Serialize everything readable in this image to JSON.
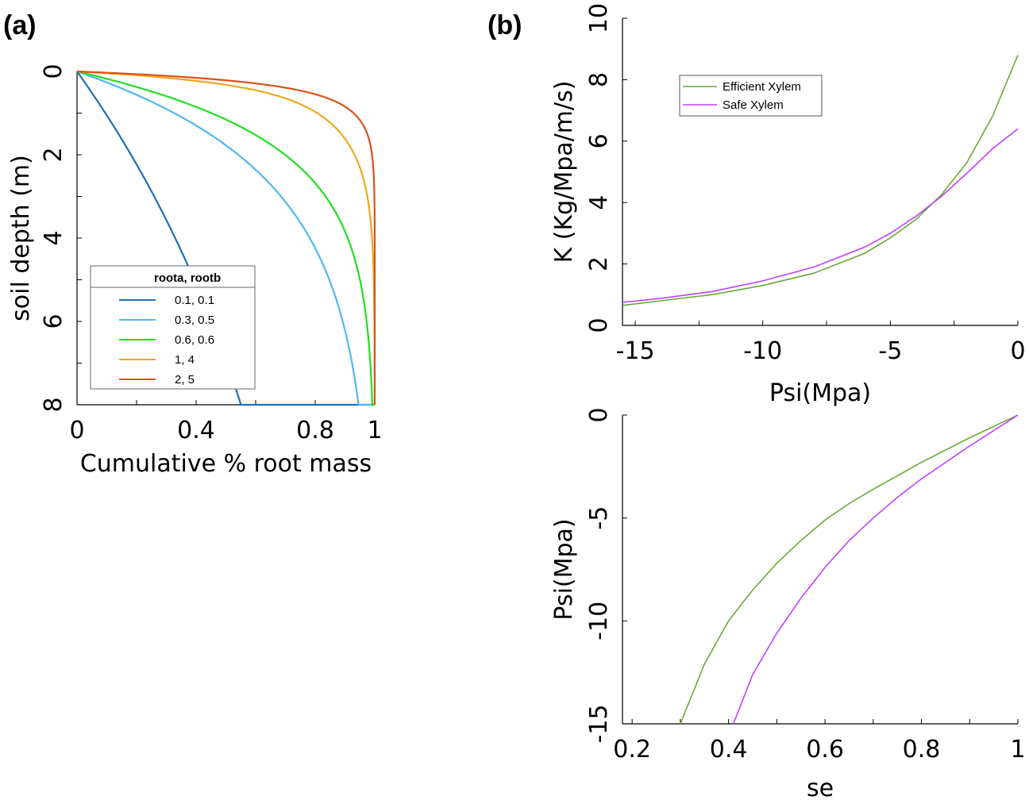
{
  "figure": {
    "panel_a_label": "(a)",
    "panel_b_label": "(b)"
  },
  "chart_data": [
    {
      "id": "a",
      "type": "line",
      "xlabel": "Cumulative % root mass",
      "ylabel": "soil depth (m)",
      "xlim": [
        0,
        1
      ],
      "ylim": [
        0,
        8
      ],
      "y_reversed": true,
      "xticks": [
        0,
        0.2,
        0.4,
        0.6,
        0.8,
        1
      ],
      "xtick_labels": [
        "0",
        "",
        "0.4",
        "",
        "0.8",
        "1"
      ],
      "yticks": [
        0,
        1,
        2,
        3,
        4,
        5,
        6,
        7,
        8
      ],
      "ytick_labels": [
        "0",
        "",
        "2",
        "",
        "4",
        "",
        "6",
        "",
        "8"
      ],
      "legend": {
        "title": "roota, rootb",
        "position": "lower-left"
      },
      "series": [
        {
          "name": "0.1, 0.1",
          "color": "#1f6fb4",
          "roota": 0.1,
          "rootb": 0.1
        },
        {
          "name": "0.3, 0.5",
          "color": "#4fb9ee",
          "roota": 0.3,
          "rootb": 0.5
        },
        {
          "name": "0.6, 0.6",
          "color": "#22dd22",
          "roota": 0.6,
          "rootb": 0.6
        },
        {
          "name": "  1,  4",
          "color": "#f0a81c",
          "roota": 1,
          "rootb": 4
        },
        {
          "name": "  2,  5",
          "color": "#dc5218",
          "roota": 2,
          "rootb": 5
        }
      ]
    },
    {
      "id": "b-top",
      "type": "line",
      "xlabel": "Psi(Mpa)",
      "ylabel": "K (Kg/Mpa/m/s)",
      "xlim": [
        -15.5,
        0
      ],
      "ylim": [
        0,
        10
      ],
      "xticks": [
        -15,
        -12.5,
        -10,
        -7.5,
        -5,
        -2.5,
        0
      ],
      "xtick_labels": [
        "-15",
        "",
        "-10",
        "",
        "-5",
        "",
        "0"
      ],
      "yticks": [
        0,
        2,
        4,
        6,
        8,
        10
      ],
      "ytick_labels": [
        "0",
        "2",
        "4",
        "6",
        "8",
        "10"
      ],
      "legend": {
        "position": "upper-left"
      },
      "series": [
        {
          "name": "Efficient Xylem",
          "color": "#6aaa3a",
          "x": [
            -15.5,
            -14,
            -12,
            -10,
            -8,
            -6,
            -5,
            -4,
            -3,
            -2,
            -1,
            0
          ],
          "y": [
            0.65,
            0.8,
            1.0,
            1.3,
            1.7,
            2.35,
            2.85,
            3.45,
            4.25,
            5.3,
            6.8,
            8.8
          ]
        },
        {
          "name": "Safe Xylem",
          "color": "#c040ff",
          "x": [
            -15.5,
            -14,
            -12,
            -10,
            -8,
            -6,
            -5,
            -4,
            -3,
            -2,
            -1,
            0
          ],
          "y": [
            0.75,
            0.88,
            1.1,
            1.45,
            1.9,
            2.55,
            3.0,
            3.55,
            4.2,
            4.95,
            5.75,
            6.4
          ]
        }
      ]
    },
    {
      "id": "b-bottom",
      "type": "line",
      "xlabel": "se",
      "ylabel": "Psi(Mpa)",
      "xlim": [
        0.18,
        1
      ],
      "ylim": [
        -15,
        0
      ],
      "xticks": [
        0.2,
        0.3,
        0.4,
        0.5,
        0.6,
        0.7,
        0.8,
        0.9,
        1
      ],
      "xtick_labels": [
        "0.2",
        "",
        "0.4",
        "",
        "0.6",
        "",
        "0.8",
        "",
        "1"
      ],
      "yticks": [
        -15,
        -10,
        -5,
        0
      ],
      "ytick_labels": [
        "-15",
        "-10",
        "-5",
        "0"
      ],
      "series": [
        {
          "name": "Efficient Xylem",
          "color": "#6aaa3a",
          "x": [
            0.3,
            0.35,
            0.4,
            0.45,
            0.5,
            0.55,
            0.6,
            0.65,
            0.7,
            0.8,
            0.9,
            1.0
          ],
          "y": [
            -15,
            -12.1,
            -10.0,
            -8.5,
            -7.2,
            -6.1,
            -5.1,
            -4.3,
            -3.6,
            -2.3,
            -1.1,
            0
          ]
        },
        {
          "name": "Safe Xylem",
          "color": "#c040ff",
          "x": [
            0.41,
            0.45,
            0.5,
            0.55,
            0.6,
            0.65,
            0.7,
            0.75,
            0.8,
            0.9,
            1.0
          ],
          "y": [
            -15,
            -12.6,
            -10.6,
            -8.9,
            -7.4,
            -6.1,
            -5.0,
            -4.0,
            -3.1,
            -1.5,
            0
          ]
        }
      ]
    }
  ]
}
